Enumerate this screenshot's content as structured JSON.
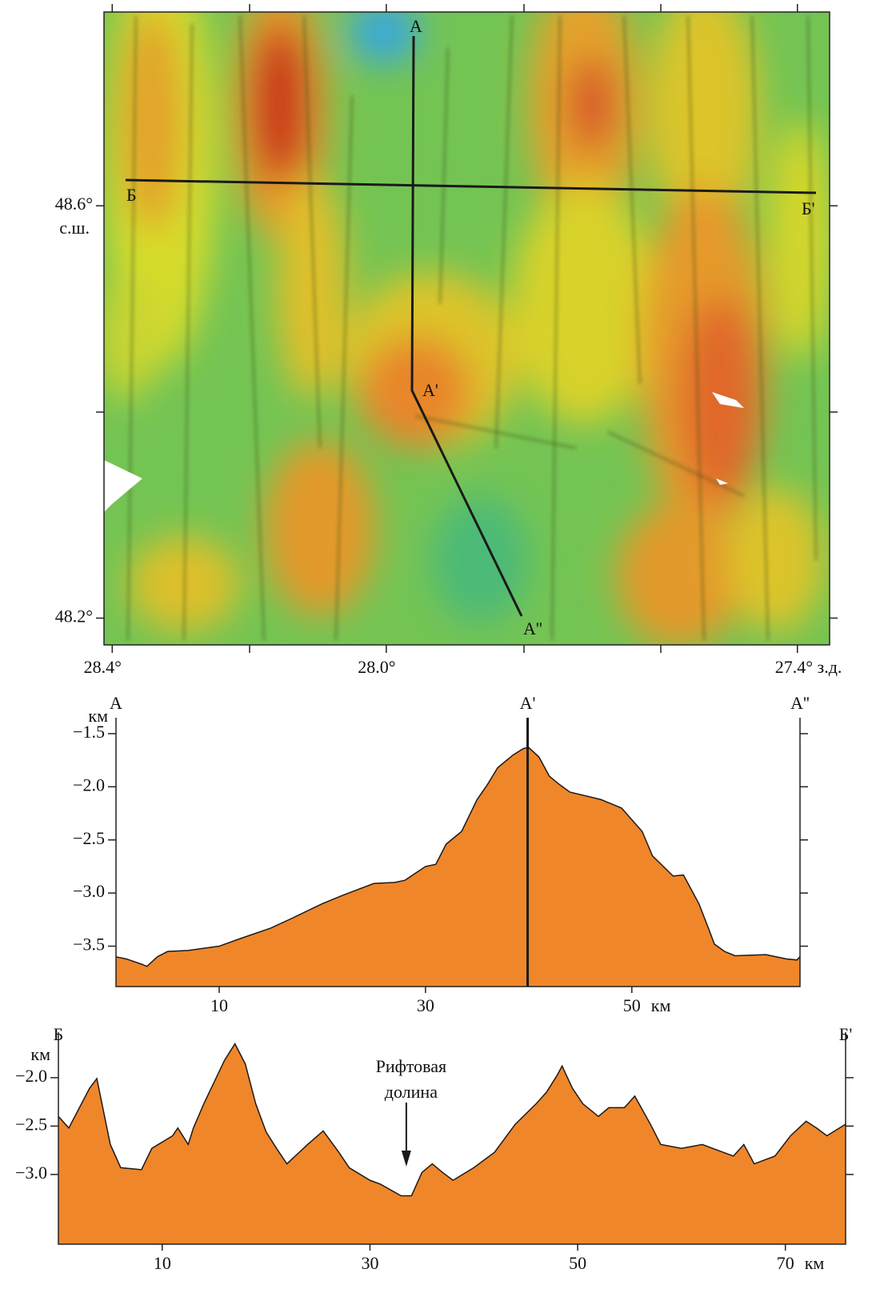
{
  "map": {
    "xlim": [
      28.412,
      27.353
    ],
    "ylim": [
      48.174,
      48.788
    ],
    "xticks": [
      {
        "value": 28.4,
        "label": "28.4°"
      },
      {
        "value": 28.0,
        "label": "28.0°"
      },
      {
        "value": 27.4,
        "label": "27.4° з.д."
      }
    ],
    "yticks": [
      {
        "value": 48.6,
        "label": "48.6°"
      },
      {
        "value": 48.2,
        "label": "48.2°"
      }
    ],
    "ylabel": "с.ш.",
    "profile_labels": {
      "a": "А",
      "a1": "А'",
      "a2": "А''",
      "b": "Б",
      "b1": "Б'"
    }
  },
  "chart_data": [
    {
      "type": "area",
      "color": "#f0862a",
      "start_label": "А",
      "end_label": "А''",
      "marker": {
        "text": "А'",
        "x": 39.9
      },
      "ylabel": "км",
      "xunit": "км",
      "xlim": [
        0,
        66.3
      ],
      "ylim": [
        -3.88,
        -1.35
      ],
      "xticks": [
        10,
        30,
        50
      ],
      "yticks": [
        {
          "value": -1.5,
          "label": "−1.5"
        },
        {
          "value": -2.0,
          "label": "−2.0"
        },
        {
          "value": -2.5,
          "label": "−2.5"
        },
        {
          "value": -3.0,
          "label": "−3.0"
        },
        {
          "value": -3.5,
          "label": "−3.5"
        }
      ],
      "x": [
        0,
        1,
        2.5,
        3,
        4,
        5,
        7,
        10,
        12,
        15,
        17,
        20,
        22,
        25,
        27,
        28,
        30,
        31,
        32,
        33.5,
        35,
        36,
        37,
        38.5,
        39.5,
        40,
        41,
        42,
        43,
        44,
        47,
        49,
        50,
        51,
        52,
        54,
        55,
        56.5,
        57.5,
        58,
        59,
        60,
        63,
        65,
        66,
        66.3
      ],
      "values": [
        -3.6,
        -3.62,
        -3.67,
        -3.69,
        -3.6,
        -3.55,
        -3.54,
        -3.5,
        -3.43,
        -3.33,
        -3.24,
        -3.1,
        -3.02,
        -2.91,
        -2.9,
        -2.88,
        -2.75,
        -2.73,
        -2.54,
        -2.42,
        -2.12,
        -1.98,
        -1.82,
        -1.7,
        -1.64,
        -1.63,
        -1.72,
        -1.9,
        -1.98,
        -2.05,
        -2.12,
        -2.2,
        -2.31,
        -2.42,
        -2.65,
        -2.84,
        -2.83,
        -3.1,
        -3.35,
        -3.48,
        -3.55,
        -3.59,
        -3.58,
        -3.62,
        -3.63,
        -3.6
      ]
    },
    {
      "type": "area",
      "color": "#f0862a",
      "start_label": "Б",
      "end_label": "Б'",
      "annotation": {
        "lines": [
          "Рифтовая",
          "долина"
        ],
        "x": 33.5
      },
      "ylabel": "км",
      "xunit": "км",
      "xlim": [
        0,
        75.8
      ],
      "ylim": [
        -3.72,
        -1.53
      ],
      "xticks": [
        10,
        30,
        50,
        70
      ],
      "yticks": [
        {
          "value": -2.0,
          "label": "−2.0"
        },
        {
          "value": -2.5,
          "label": "−2.5"
        },
        {
          "value": -3.0,
          "label": "−3.0"
        }
      ],
      "x": [
        0,
        1,
        3,
        3.7,
        5,
        6,
        8,
        9,
        11,
        11.5,
        12.5,
        13,
        14,
        16,
        17,
        18,
        19,
        20,
        21,
        22,
        24,
        25.5,
        27,
        28,
        30,
        31,
        33,
        34,
        35,
        36,
        37,
        38,
        40,
        42,
        44,
        46,
        47,
        48,
        48.5,
        49.5,
        50.5,
        52,
        53,
        54.5,
        55.5,
        57,
        58,
        60,
        62,
        64,
        65,
        66,
        67,
        69,
        70.5,
        72,
        73,
        74,
        75.8
      ],
      "values": [
        -2.4,
        -2.52,
        -2.11,
        -2.01,
        -2.69,
        -2.93,
        -2.95,
        -2.73,
        -2.6,
        -2.52,
        -2.69,
        -2.52,
        -2.27,
        -1.82,
        -1.65,
        -1.86,
        -2.27,
        -2.56,
        -2.73,
        -2.89,
        -2.69,
        -2.55,
        -2.77,
        -2.93,
        -3.06,
        -3.1,
        -3.22,
        -3.22,
        -2.98,
        -2.89,
        -2.98,
        -3.06,
        -2.93,
        -2.77,
        -2.48,
        -2.27,
        -2.15,
        -1.98,
        -1.88,
        -2.11,
        -2.27,
        -2.4,
        -2.31,
        -2.31,
        -2.19,
        -2.48,
        -2.69,
        -2.73,
        -2.69,
        -2.77,
        -2.81,
        -2.69,
        -2.89,
        -2.81,
        -2.6,
        -2.45,
        -2.52,
        -2.6,
        -2.48
      ]
    }
  ]
}
